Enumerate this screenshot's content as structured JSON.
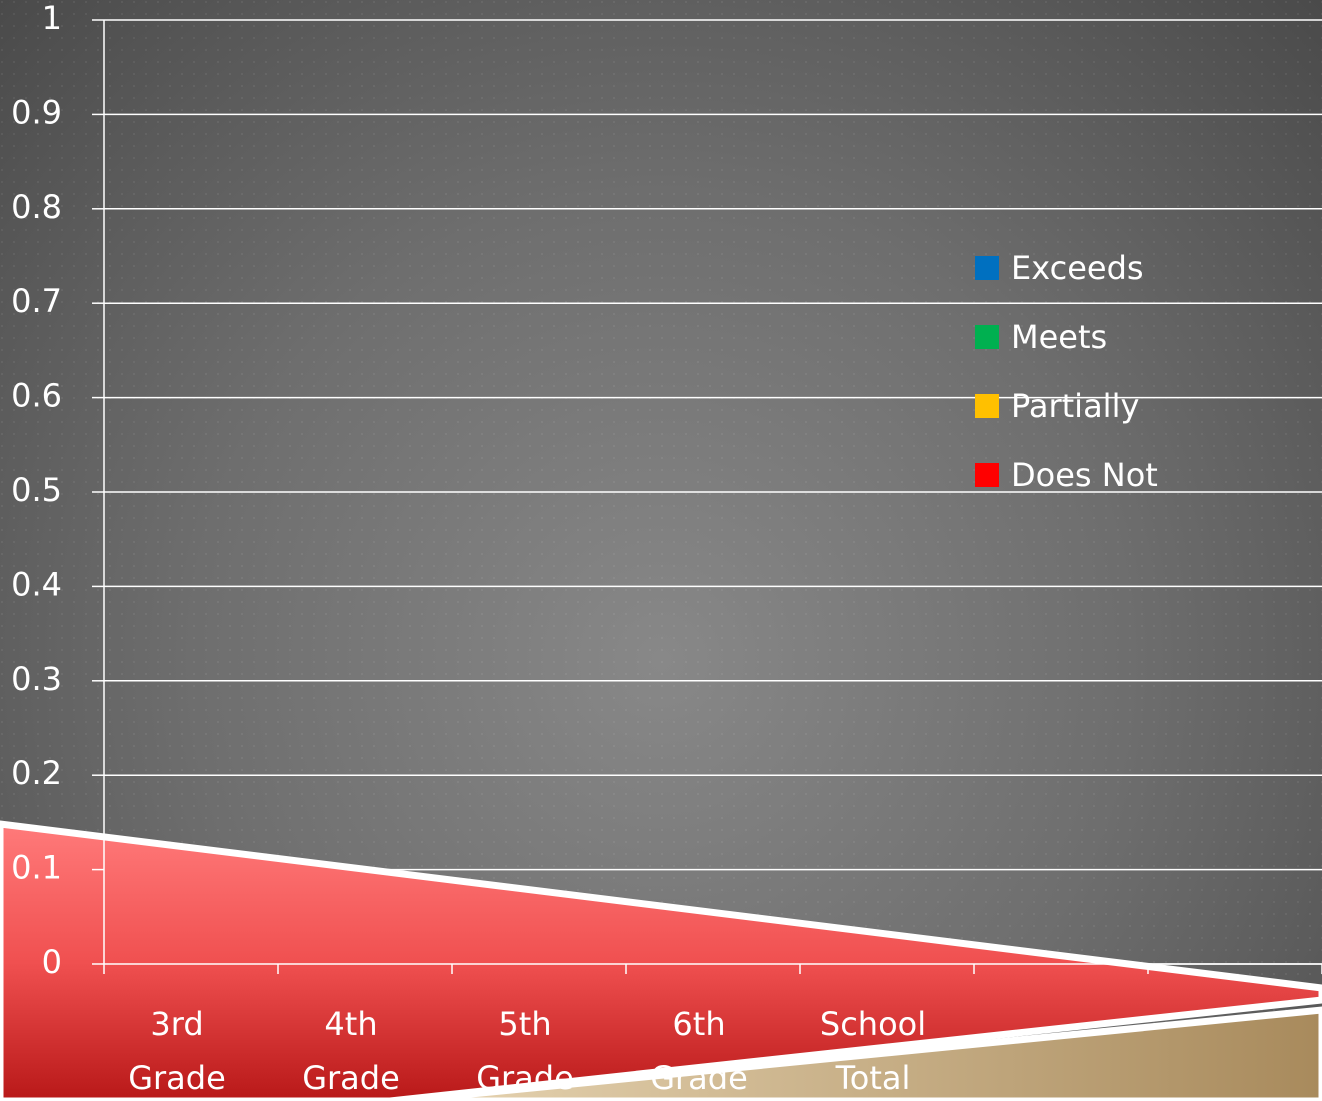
{
  "chart_data": {
    "type": "stacked_bar",
    "categories": [
      "3rd Grade",
      "4th Grade",
      "5th Grade",
      "6th Grade",
      "School Total",
      null,
      null
    ],
    "series": [
      {
        "name": "Exceeds",
        "color": "#0070c0",
        "values": [
          null,
          null,
          null,
          null,
          null,
          null,
          null
        ]
      },
      {
        "name": "Meets",
        "color": "#00b050",
        "values": [
          null,
          null,
          null,
          null,
          null,
          null,
          null
        ]
      },
      {
        "name": "Partially",
        "color": "#ffc000",
        "values": [
          null,
          null,
          null,
          null,
          null,
          null,
          null
        ]
      },
      {
        "name": "Does Not",
        "color": "#ff0000",
        "values": [
          null,
          null,
          null,
          null,
          null,
          null,
          null
        ]
      }
    ],
    "ylim": [
      0,
      1
    ],
    "yticks": [
      0,
      0.1,
      0.2,
      0.3,
      0.4,
      0.5,
      0.6,
      0.7,
      0.8,
      0.9,
      1
    ],
    "grid": true,
    "legend": "right"
  }
}
